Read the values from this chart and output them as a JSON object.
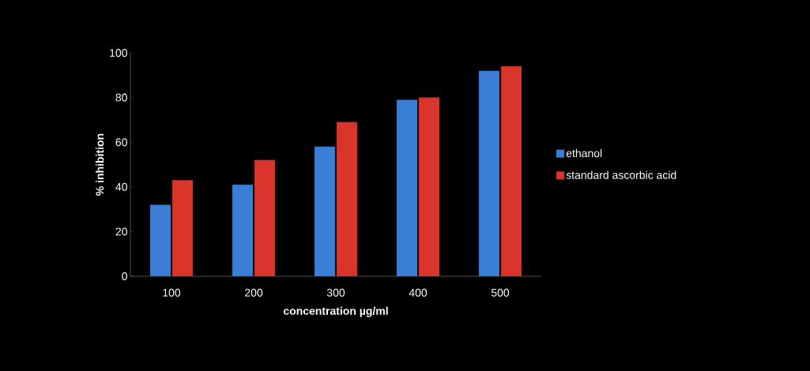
{
  "chart_data": {
    "type": "bar",
    "xlabel": "concentration µg/ml",
    "ylabel": "% inhibition",
    "categories": [
      "100",
      "200",
      "300",
      "400",
      "500"
    ],
    "series": [
      {
        "name": "ethanol",
        "color": "#3a7fd5",
        "values": [
          32,
          41,
          58,
          79,
          92
        ]
      },
      {
        "name": "standard ascorbic acid",
        "color": "#d9352b",
        "values": [
          43,
          52,
          69,
          80,
          94
        ]
      }
    ],
    "ylim": [
      0,
      100
    ],
    "yticks": [
      0,
      20,
      40,
      60,
      80,
      100
    ],
    "grid": false,
    "legend": "right"
  }
}
